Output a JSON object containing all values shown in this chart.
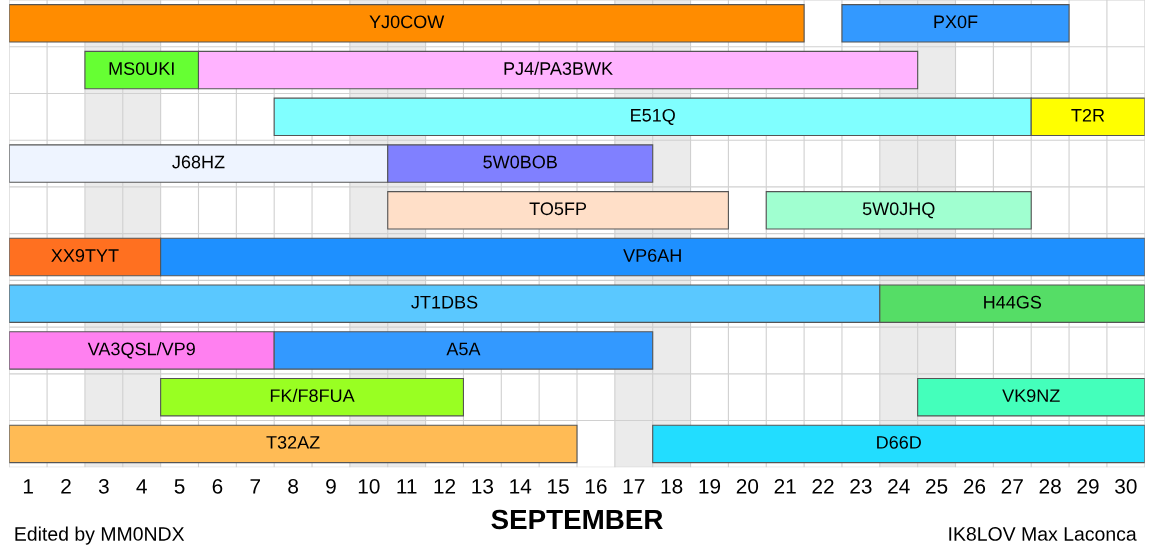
{
  "chart_data": {
    "type": "bar",
    "orientation": "horizontal",
    "xlabel": "SEPTEMBER",
    "categories": [
      null,
      null,
      null,
      null,
      null,
      null,
      null,
      null,
      null,
      null
    ],
    "series": [
      {
        "name": "YJ0COW",
        "color": "#ff8c00",
        "base": [
          0.5,
          null,
          null,
          null,
          null,
          null,
          null,
          null,
          null,
          null
        ],
        "values": [
          21,
          null,
          null,
          null,
          null,
          null,
          null,
          null,
          null,
          null
        ]
      },
      {
        "name": "PX0F",
        "color": "#3399ff",
        "base": [
          22.5,
          null,
          null,
          null,
          null,
          null,
          null,
          null,
          null,
          null
        ],
        "values": [
          6,
          null,
          null,
          null,
          null,
          null,
          null,
          null,
          null,
          null
        ]
      },
      {
        "name": "MS0UKI",
        "color": "#66ff33",
        "base": [
          null,
          2.5,
          null,
          null,
          null,
          null,
          null,
          null,
          null,
          null
        ],
        "values": [
          null,
          3,
          null,
          null,
          null,
          null,
          null,
          null,
          null,
          null
        ]
      },
      {
        "name": "PJ4/PA3BWK",
        "color": "#ffb3ff",
        "base": [
          null,
          5.5,
          null,
          null,
          null,
          null,
          null,
          null,
          null,
          null
        ],
        "values": [
          null,
          19,
          null,
          null,
          null,
          null,
          null,
          null,
          null,
          null
        ]
      },
      {
        "name": "E51Q",
        "color": "#80ffff",
        "base": [
          null,
          null,
          7.5,
          null,
          null,
          null,
          null,
          null,
          null,
          null
        ],
        "values": [
          null,
          null,
          20,
          null,
          null,
          null,
          null,
          null,
          null,
          null
        ]
      },
      {
        "name": "T2R",
        "color": "#ffff00",
        "base": [
          null,
          null,
          27.5,
          null,
          null,
          null,
          null,
          null,
          null,
          null
        ],
        "values": [
          null,
          null,
          3,
          null,
          null,
          null,
          null,
          null,
          null,
          null
        ]
      },
      {
        "name": "J68HZ",
        "color": "#eef4ff",
        "base": [
          null,
          null,
          null,
          0.5,
          null,
          null,
          null,
          null,
          null,
          null
        ],
        "values": [
          null,
          null,
          null,
          10,
          null,
          null,
          null,
          null,
          null,
          null
        ]
      },
      {
        "name": "5W0BOB",
        "color": "#8080ff",
        "base": [
          null,
          null,
          null,
          10.5,
          null,
          null,
          null,
          null,
          null,
          null
        ],
        "values": [
          null,
          null,
          null,
          7,
          null,
          null,
          null,
          null,
          null,
          null
        ]
      },
      {
        "name": "TO5FP",
        "color": "#ffdfc8",
        "base": [
          null,
          null,
          null,
          null,
          10.5,
          null,
          null,
          null,
          null,
          null
        ],
        "values": [
          null,
          null,
          null,
          null,
          9,
          null,
          null,
          null,
          null,
          null
        ]
      },
      {
        "name": "5W0JHQ",
        "color": "#a0ffd0",
        "base": [
          null,
          null,
          null,
          null,
          20.5,
          null,
          null,
          null,
          null,
          null
        ],
        "values": [
          null,
          null,
          null,
          null,
          7,
          null,
          null,
          null,
          null,
          null
        ]
      },
      {
        "name": "XX9TYT",
        "color": "#ff7020",
        "base": [
          null,
          null,
          null,
          null,
          null,
          0.5,
          null,
          null,
          null,
          null
        ],
        "values": [
          null,
          null,
          null,
          null,
          null,
          4,
          null,
          null,
          null,
          null
        ]
      },
      {
        "name": "VP6AH",
        "color": "#1e90ff",
        "base": [
          null,
          null,
          null,
          null,
          null,
          4.5,
          null,
          null,
          null,
          null
        ],
        "values": [
          null,
          null,
          null,
          null,
          null,
          26,
          null,
          null,
          null,
          null
        ]
      },
      {
        "name": "JT1DBS",
        "color": "#5ac8ff",
        "base": [
          null,
          null,
          null,
          null,
          null,
          null,
          0.5,
          null,
          null,
          null
        ],
        "values": [
          null,
          null,
          null,
          null,
          null,
          null,
          23,
          null,
          null,
          null
        ]
      },
      {
        "name": "H44GS",
        "color": "#55dd66",
        "base": [
          null,
          null,
          null,
          null,
          null,
          null,
          23.5,
          null,
          null,
          null
        ],
        "values": [
          null,
          null,
          null,
          null,
          null,
          null,
          7,
          null,
          null,
          null
        ]
      },
      {
        "name": "VA3QSL/VP9",
        "color": "#ff80f0",
        "base": [
          null,
          null,
          null,
          null,
          null,
          null,
          null,
          0.5,
          null,
          null
        ],
        "values": [
          null,
          null,
          null,
          null,
          null,
          null,
          null,
          7,
          null,
          null
        ]
      },
      {
        "name": "A5A",
        "color": "#3399ff",
        "base": [
          null,
          null,
          null,
          null,
          null,
          null,
          null,
          7.5,
          null,
          null
        ],
        "values": [
          null,
          null,
          null,
          null,
          null,
          null,
          null,
          10,
          null,
          null
        ]
      },
      {
        "name": "FK/F8FUA",
        "color": "#99ff22",
        "base": [
          null,
          null,
          null,
          null,
          null,
          null,
          null,
          null,
          4.5,
          null
        ],
        "values": [
          null,
          null,
          null,
          null,
          null,
          null,
          null,
          null,
          8,
          null
        ]
      },
      {
        "name": "VK9NZ",
        "color": "#44ffbb",
        "base": [
          null,
          null,
          null,
          null,
          null,
          null,
          null,
          null,
          24.5,
          null
        ],
        "values": [
          null,
          null,
          null,
          null,
          null,
          null,
          null,
          null,
          6,
          null
        ]
      },
      {
        "name": "T32AZ",
        "color": "#ffbb55",
        "base": [
          null,
          null,
          null,
          null,
          null,
          null,
          null,
          null,
          null,
          0.5
        ],
        "values": [
          null,
          null,
          null,
          null,
          null,
          null,
          null,
          null,
          null,
          15
        ]
      },
      {
        "name": "D66D",
        "color": "#22ddff",
        "base": [
          null,
          null,
          null,
          null,
          null,
          null,
          null,
          null,
          null,
          17.5
        ],
        "values": [
          null,
          null,
          null,
          null,
          null,
          null,
          null,
          null,
          null,
          13
        ]
      }
    ],
    "xlim": [
      0.5,
      30.5
    ],
    "xticks": [
      1,
      2,
      3,
      4,
      5,
      6,
      7,
      8,
      9,
      10,
      11,
      12,
      13,
      14,
      15,
      16,
      17,
      18,
      19,
      20,
      21,
      22,
      23,
      24,
      25,
      26,
      27,
      28,
      29,
      30
    ],
    "bands": [
      {
        "axis": "x",
        "from": 2.5,
        "to": 4.5,
        "color": "#ebebeb"
      },
      {
        "axis": "x",
        "from": 9.5,
        "to": 11.5,
        "color": "#ebebeb"
      },
      {
        "axis": "x",
        "from": 16.5,
        "to": 18.5,
        "color": "#ebebeb"
      },
      {
        "axis": "x",
        "from": 23.5,
        "to": 25.5,
        "color": "#ebebeb"
      }
    ],
    "grid": true,
    "tick_labels": "x",
    "annotations": [
      "Edited by MM0NDX",
      "IK8LOV Max Laconca"
    ]
  }
}
